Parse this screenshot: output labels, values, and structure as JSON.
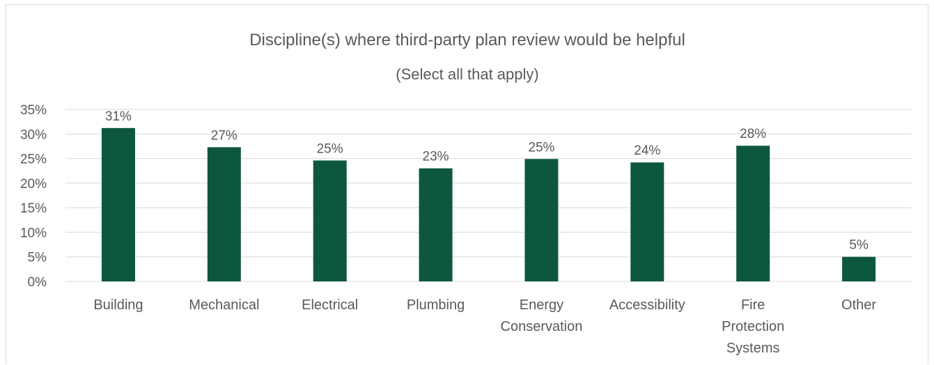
{
  "chart_data": {
    "type": "bar",
    "title": "Discipline(s) where third-party plan review would be helpful",
    "subtitle": "(Select all that apply)",
    "categories": [
      [
        "Building"
      ],
      [
        "Mechanical"
      ],
      [
        "Electrical"
      ],
      [
        "Plumbing"
      ],
      [
        "Energy",
        "Conservation"
      ],
      [
        "Accessibility"
      ],
      [
        "Fire",
        "Protection",
        "Systems"
      ],
      [
        "Other"
      ]
    ],
    "values": [
      31.2,
      27.3,
      24.6,
      23.0,
      24.9,
      24.2,
      27.6,
      5.0
    ],
    "data_labels": [
      "31%",
      "27%",
      "25%",
      "23%",
      "25%",
      "24%",
      "28%",
      "5%"
    ],
    "yticks": [
      "0%",
      "5%",
      "10%",
      "15%",
      "20%",
      "25%",
      "30%",
      "35%"
    ],
    "ylim": [
      0,
      35
    ],
    "xlabel": "",
    "ylabel": "",
    "grid": true,
    "bar_color": "#0d5740"
  }
}
